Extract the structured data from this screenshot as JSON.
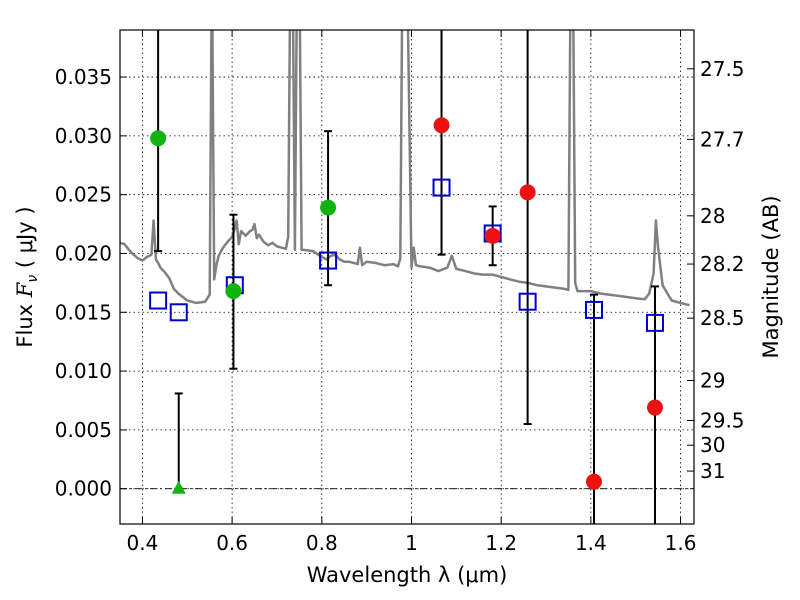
{
  "chart_data": {
    "type": "scatter",
    "xlabel": "Wavelength  λ (μm)",
    "ylabel": "Flux  F_ν  ( μJy )",
    "ylabel_parts": {
      "prefix": "Flux  ",
      "symbol": "F",
      "subscript": "ν",
      "suffix": "  ( μJy )"
    },
    "right_ylabel": "Magnitude (AB)",
    "xlim": [
      0.35,
      1.63
    ],
    "ylim": [
      -0.003,
      0.039
    ],
    "grid": true,
    "grid_style": "dotted",
    "x_ticks": [
      0.4,
      0.6,
      0.8,
      1.0,
      1.2,
      1.4,
      1.6
    ],
    "x_tick_labels": [
      "0.4",
      "0.6",
      "0.8",
      "1",
      "1.2",
      "1.4",
      "1.6"
    ],
    "y_ticks": [
      0.0,
      0.005,
      0.01,
      0.015,
      0.02,
      0.025,
      0.03,
      0.035
    ],
    "y_tick_labels": [
      "0.000",
      "0.005",
      "0.010",
      "0.015",
      "0.020",
      "0.025",
      "0.030",
      "0.035"
    ],
    "right_ticks": [
      {
        "label": "27.5",
        "flux": 0.0357
      },
      {
        "label": "27.7",
        "flux": 0.0297
      },
      {
        "label": "28",
        "flux": 0.0232
      },
      {
        "label": "28.2",
        "flux": 0.0191
      },
      {
        "label": "28.5",
        "flux": 0.0145
      },
      {
        "label": "29",
        "flux": 0.0092
      },
      {
        "label": "29.5",
        "flux": 0.0058
      },
      {
        "label": "30",
        "flux": 0.0037
      },
      {
        "label": "31",
        "flux": 0.0015
      }
    ],
    "colors": {
      "sed": "#808080",
      "green": "#11b311",
      "red": "#ee1111",
      "square": "#0000cc",
      "errorbar": "#000000"
    },
    "series": [
      {
        "name": "model_sed",
        "style": "line",
        "color": "#808080",
        "x": [
          0.35,
          0.36,
          0.37,
          0.38,
          0.39,
          0.4,
          0.41,
          0.42,
          0.425,
          0.43,
          0.435,
          0.44,
          0.45,
          0.46,
          0.47,
          0.48,
          0.49,
          0.5,
          0.52,
          0.54,
          0.55,
          0.555,
          0.56,
          0.565,
          0.57,
          0.58,
          0.59,
          0.6,
          0.605,
          0.61,
          0.615,
          0.62,
          0.63,
          0.64,
          0.645,
          0.65,
          0.655,
          0.66,
          0.67,
          0.68,
          0.69,
          0.7,
          0.71,
          0.72,
          0.725,
          0.73,
          0.735,
          0.74,
          0.745,
          0.75,
          0.755,
          0.76,
          0.78,
          0.8,
          0.81,
          0.82,
          0.83,
          0.84,
          0.85,
          0.86,
          0.88,
          0.885,
          0.89,
          0.9,
          0.92,
          0.94,
          0.96,
          0.97,
          0.975,
          0.98,
          0.985,
          0.99,
          1.0,
          1.005,
          1.01,
          1.02,
          1.04,
          1.06,
          1.08,
          1.09,
          1.1,
          1.12,
          1.14,
          1.16,
          1.18,
          1.2,
          1.22,
          1.24,
          1.26,
          1.28,
          1.3,
          1.32,
          1.34,
          1.35,
          1.355,
          1.36,
          1.365,
          1.37,
          1.4,
          1.42,
          1.44,
          1.46,
          1.48,
          1.5,
          1.52,
          1.53,
          1.54,
          1.545,
          1.55,
          1.56,
          1.58,
          1.6,
          1.62
        ],
        "y": [
          0.0209,
          0.0208,
          0.0203,
          0.0199,
          0.0196,
          0.0194,
          0.0197,
          0.0199,
          0.0228,
          0.0195,
          0.0192,
          0.0188,
          0.0184,
          0.0179,
          0.017,
          0.0166,
          0.0163,
          0.016,
          0.0158,
          0.0159,
          0.0165,
          0.045,
          0.0178,
          0.019,
          0.0198,
          0.0205,
          0.021,
          0.0214,
          0.022,
          0.0228,
          0.0208,
          0.0219,
          0.0215,
          0.0219,
          0.022,
          0.0225,
          0.0213,
          0.0216,
          0.021,
          0.0207,
          0.0209,
          0.0206,
          0.0205,
          0.0204,
          0.0214,
          0.045,
          0.045,
          0.0203,
          0.045,
          0.045,
          0.0203,
          0.0203,
          0.0202,
          0.0197,
          0.0195,
          0.0198,
          0.0199,
          0.0195,
          0.0193,
          0.0193,
          0.0191,
          0.0205,
          0.019,
          0.0193,
          0.0192,
          0.019,
          0.0191,
          0.0189,
          0.0196,
          0.045,
          0.045,
          0.045,
          0.0188,
          0.0205,
          0.019,
          0.0189,
          0.0188,
          0.0185,
          0.0188,
          0.0198,
          0.0187,
          0.0185,
          0.0183,
          0.0182,
          0.0182,
          0.018,
          0.0178,
          0.0176,
          0.0175,
          0.0173,
          0.0172,
          0.0171,
          0.017,
          0.0169,
          0.045,
          0.045,
          0.0175,
          0.0168,
          0.0168,
          0.0166,
          0.0165,
          0.0164,
          0.0163,
          0.0162,
          0.0161,
          0.0166,
          0.0183,
          0.0228,
          0.0205,
          0.0173,
          0.016,
          0.0158,
          0.0156
        ]
      },
      {
        "name": "green_circles",
        "style": "circle",
        "color": "#11b311",
        "points": [
          {
            "x": 0.435,
            "y": 0.0298,
            "yerr_low": 0.0202,
            "yerr_high": 0.039
          },
          {
            "x": 0.603,
            "y": 0.0168,
            "yerr_low": 0.0102,
            "yerr_high": 0.0233
          },
          {
            "x": 0.814,
            "y": 0.0239,
            "yerr_low": 0.0173,
            "yerr_high": 0.0304
          }
        ]
      },
      {
        "name": "green_upper_limit",
        "style": "triangle",
        "color": "#11b311",
        "points": [
          {
            "x": 0.481,
            "y": 0.0,
            "yerr_low": 0.0,
            "yerr_high": 0.0081
          }
        ]
      },
      {
        "name": "red_circles",
        "style": "circle",
        "color": "#ee1111",
        "points": [
          {
            "x": 1.067,
            "y": 0.0309,
            "yerr_low": 0.0199,
            "yerr_high": 0.039
          },
          {
            "x": 1.181,
            "y": 0.0215,
            "yerr_low": 0.019,
            "yerr_high": 0.024
          },
          {
            "x": 1.259,
            "y": 0.0252,
            "yerr_low": 0.0055,
            "yerr_high": 0.039
          },
          {
            "x": 1.407,
            "y": 0.0006,
            "yerr_low": -0.003,
            "yerr_high": 0.0165
          },
          {
            "x": 1.543,
            "y": 0.0069,
            "yerr_low": -0.003,
            "yerr_high": 0.0172
          }
        ]
      },
      {
        "name": "model_squares",
        "style": "square",
        "color": "#0000cc",
        "points": [
          {
            "x": 0.435,
            "y": 0.016
          },
          {
            "x": 0.481,
            "y": 0.015
          },
          {
            "x": 0.606,
            "y": 0.0173
          },
          {
            "x": 0.814,
            "y": 0.0194
          },
          {
            "x": 1.067,
            "y": 0.0256
          },
          {
            "x": 1.181,
            "y": 0.0217
          },
          {
            "x": 1.259,
            "y": 0.0159
          },
          {
            "x": 1.407,
            "y": 0.0152
          },
          {
            "x": 1.543,
            "y": 0.0141
          }
        ]
      }
    ]
  }
}
